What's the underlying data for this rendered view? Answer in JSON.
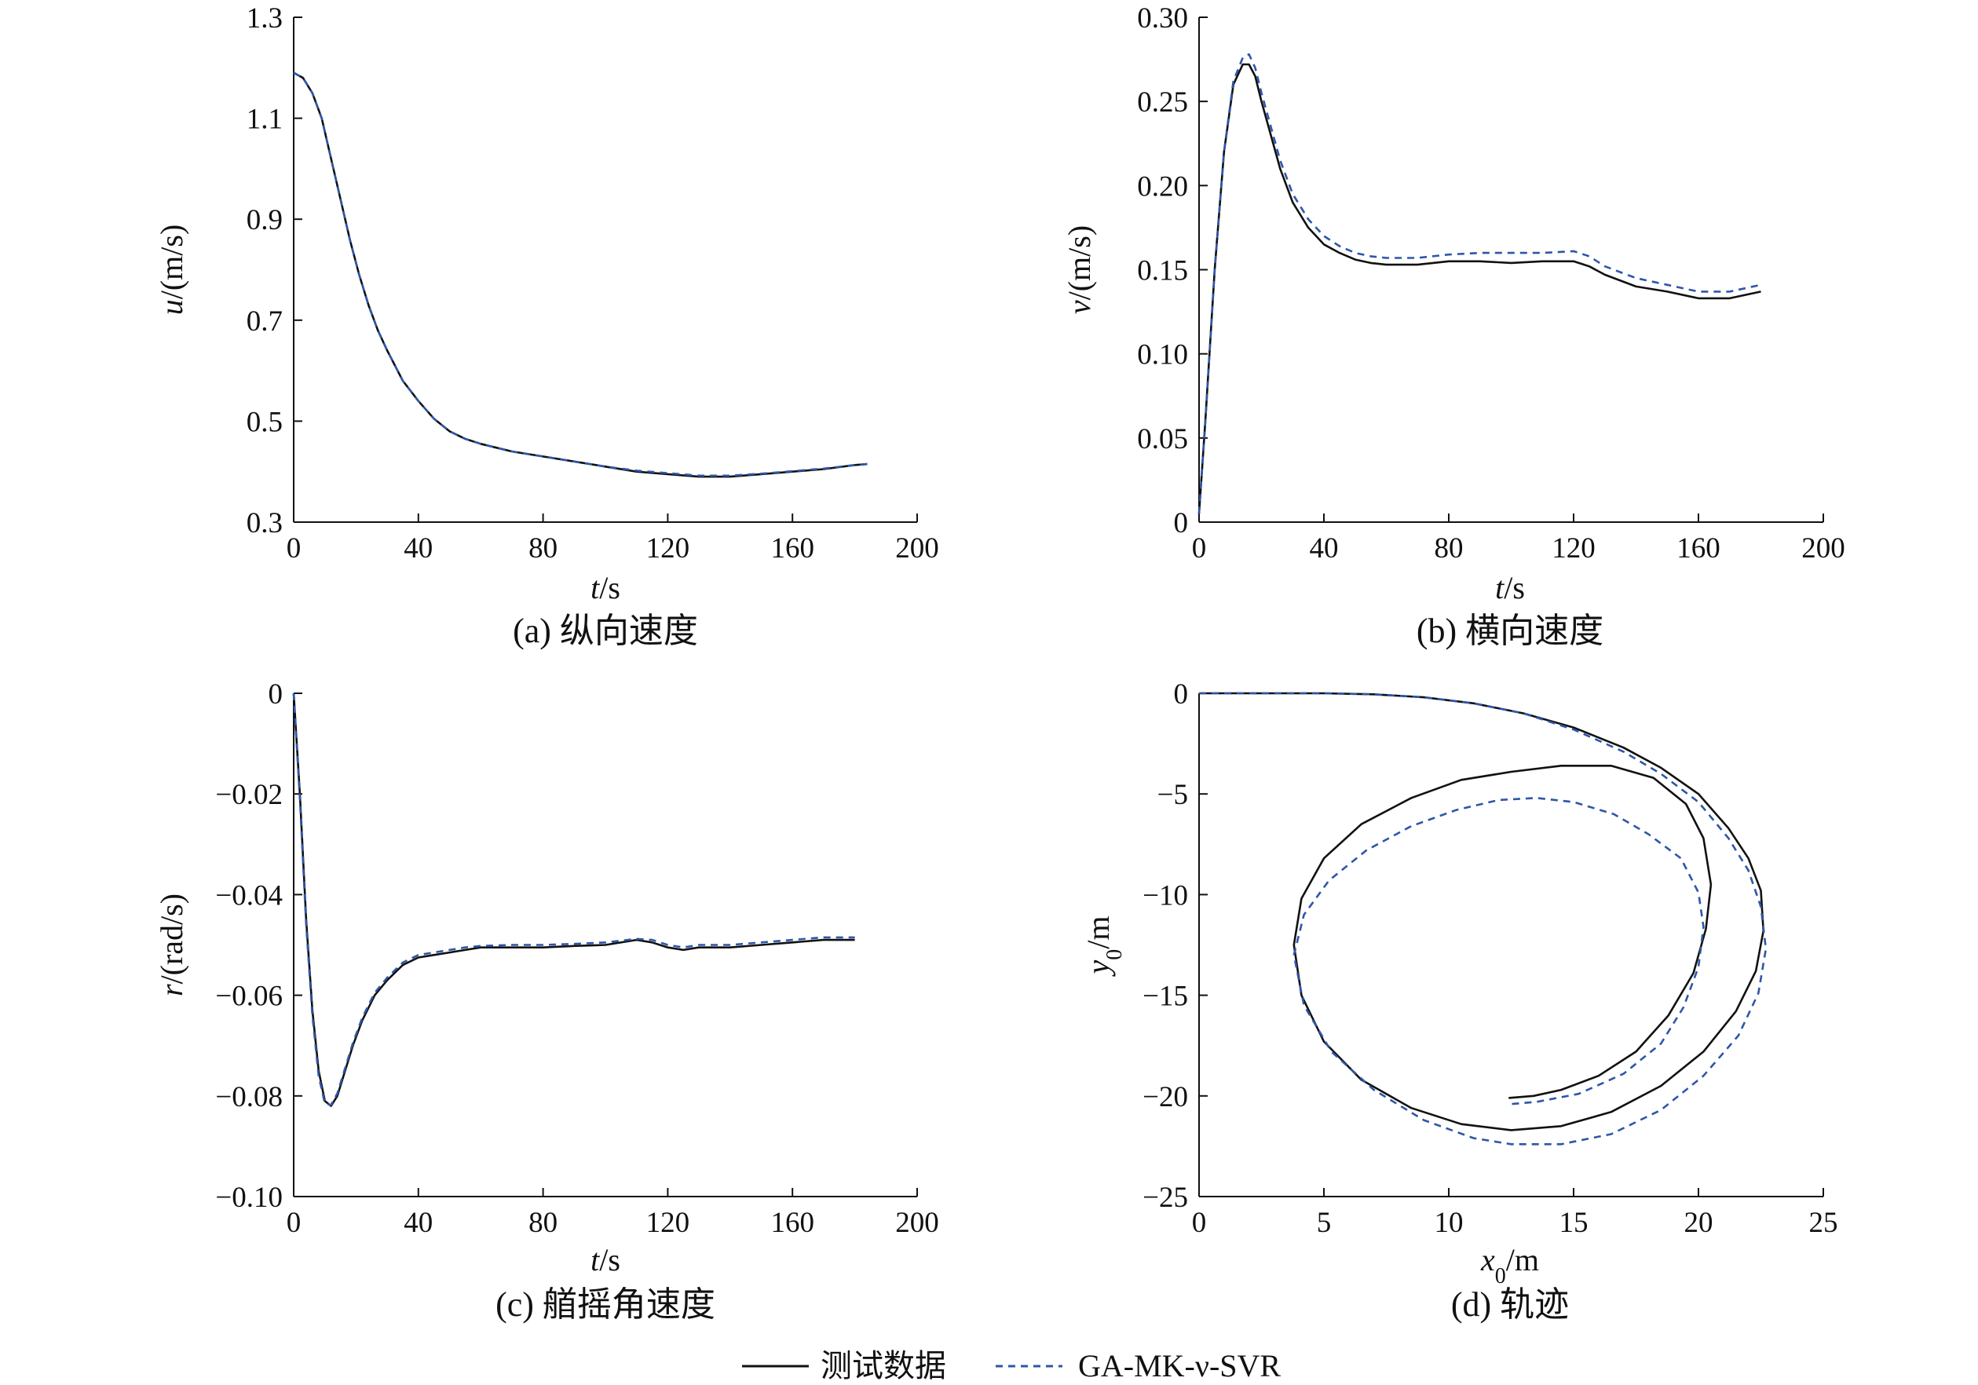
{
  "legend": {
    "test": "测试数据",
    "model": "GA-MK-ν-SVR"
  },
  "colors": {
    "test": "#111111",
    "model": "#2e56a8"
  },
  "chart_data": [
    {
      "id": "a",
      "type": "line",
      "caption": "(a) 纵向速度",
      "xlabel_var": "t",
      "xlabel_unit": "/s",
      "ylabel_var": "u",
      "ylabel_unit": "/(m/s)",
      "xlim": [
        0,
        200
      ],
      "ylim": [
        0.3,
        1.3
      ],
      "xticks": [
        0,
        40,
        80,
        120,
        160,
        200
      ],
      "yticks": [
        0.3,
        0.5,
        0.7,
        0.9,
        1.1,
        1.3
      ],
      "ytick_labels": [
        "0.3",
        "0.5",
        "0.7",
        "0.9",
        "1.1",
        "1.3"
      ],
      "series": [
        {
          "key": "test",
          "x": [
            0,
            3,
            6,
            9,
            12,
            15,
            18,
            21,
            24,
            27,
            30,
            35,
            40,
            45,
            50,
            55,
            60,
            70,
            80,
            90,
            100,
            110,
            120,
            130,
            135,
            140,
            150,
            160,
            170,
            180,
            184
          ],
          "y": [
            1.19,
            1.18,
            1.15,
            1.1,
            1.02,
            0.94,
            0.86,
            0.79,
            0.73,
            0.68,
            0.64,
            0.58,
            0.54,
            0.505,
            0.48,
            0.465,
            0.455,
            0.44,
            0.43,
            0.42,
            0.41,
            0.4,
            0.395,
            0.39,
            0.39,
            0.39,
            0.395,
            0.4,
            0.405,
            0.413,
            0.415
          ]
        },
        {
          "key": "model",
          "x": [
            0,
            3,
            6,
            9,
            12,
            15,
            18,
            21,
            24,
            27,
            30,
            35,
            40,
            45,
            50,
            55,
            60,
            70,
            80,
            90,
            100,
            110,
            120,
            130,
            135,
            140,
            150,
            160,
            170,
            180,
            184
          ],
          "y": [
            1.19,
            1.18,
            1.15,
            1.1,
            1.02,
            0.94,
            0.86,
            0.79,
            0.73,
            0.68,
            0.64,
            0.58,
            0.54,
            0.505,
            0.48,
            0.465,
            0.455,
            0.44,
            0.43,
            0.42,
            0.41,
            0.402,
            0.397,
            0.392,
            0.392,
            0.392,
            0.396,
            0.401,
            0.406,
            0.413,
            0.415
          ]
        }
      ]
    },
    {
      "id": "b",
      "type": "line",
      "caption": "(b) 横向速度",
      "xlabel_var": "t",
      "xlabel_unit": "/s",
      "ylabel_var": "v",
      "ylabel_unit": "/(m/s)",
      "xlim": [
        0,
        200
      ],
      "ylim": [
        0,
        0.3
      ],
      "xticks": [
        0,
        40,
        80,
        120,
        160,
        200
      ],
      "yticks": [
        0,
        0.05,
        0.1,
        0.15,
        0.2,
        0.25,
        0.3
      ],
      "ytick_labels": [
        "0",
        "0.05",
        "0.10",
        "0.15",
        "0.20",
        "0.25",
        "0.30"
      ],
      "series": [
        {
          "key": "test",
          "x": [
            0,
            2,
            5,
            8,
            11,
            14,
            16,
            18,
            20,
            23,
            26,
            30,
            35,
            40,
            45,
            50,
            55,
            60,
            70,
            80,
            90,
            100,
            110,
            120,
            125,
            130,
            140,
            150,
            160,
            170,
            180
          ],
          "y": [
            0.005,
            0.06,
            0.15,
            0.22,
            0.26,
            0.272,
            0.272,
            0.265,
            0.25,
            0.23,
            0.21,
            0.19,
            0.175,
            0.165,
            0.16,
            0.156,
            0.154,
            0.153,
            0.153,
            0.155,
            0.155,
            0.154,
            0.155,
            0.155,
            0.152,
            0.147,
            0.14,
            0.137,
            0.133,
            0.133,
            0.137
          ]
        },
        {
          "key": "model",
          "x": [
            0,
            2,
            5,
            8,
            11,
            14,
            16,
            18,
            20,
            23,
            26,
            30,
            35,
            40,
            45,
            50,
            55,
            60,
            70,
            80,
            90,
            100,
            110,
            120,
            125,
            130,
            140,
            150,
            160,
            170,
            180
          ],
          "y": [
            0.005,
            0.06,
            0.15,
            0.22,
            0.262,
            0.276,
            0.278,
            0.27,
            0.255,
            0.235,
            0.215,
            0.195,
            0.18,
            0.17,
            0.164,
            0.16,
            0.158,
            0.157,
            0.157,
            0.159,
            0.16,
            0.16,
            0.16,
            0.161,
            0.158,
            0.152,
            0.145,
            0.141,
            0.137,
            0.137,
            0.141
          ]
        }
      ]
    },
    {
      "id": "c",
      "type": "line",
      "caption": "(c) 艏摇角速度",
      "xlabel_var": "t",
      "xlabel_unit": "/s",
      "ylabel_var": "r",
      "ylabel_unit": "/(rad/s)",
      "xlim": [
        0,
        200
      ],
      "ylim": [
        -0.1,
        0
      ],
      "xticks": [
        0,
        40,
        80,
        120,
        160,
        200
      ],
      "yticks": [
        -0.1,
        -0.08,
        -0.06,
        -0.04,
        -0.02,
        0
      ],
      "ytick_labels": [
        "−0.10",
        "−0.08",
        "−0.06",
        "−0.04",
        "−0.02",
        "0"
      ],
      "series": [
        {
          "key": "test",
          "x": [
            0,
            2,
            4,
            6,
            8,
            10,
            12,
            14,
            16,
            19,
            22,
            26,
            30,
            35,
            40,
            45,
            50,
            55,
            60,
            70,
            80,
            90,
            100,
            110,
            115,
            120,
            125,
            130,
            140,
            150,
            160,
            170,
            180
          ],
          "y": [
            0,
            -0.02,
            -0.045,
            -0.063,
            -0.075,
            -0.081,
            -0.082,
            -0.08,
            -0.076,
            -0.07,
            -0.065,
            -0.06,
            -0.057,
            -0.054,
            -0.0525,
            -0.052,
            -0.0515,
            -0.051,
            -0.0505,
            -0.0505,
            -0.0505,
            -0.0502,
            -0.05,
            -0.049,
            -0.0495,
            -0.0505,
            -0.051,
            -0.0505,
            -0.0505,
            -0.05,
            -0.0495,
            -0.049,
            -0.049
          ]
        },
        {
          "key": "model",
          "x": [
            0,
            2,
            4,
            6,
            8,
            10,
            12,
            14,
            16,
            19,
            22,
            26,
            30,
            35,
            40,
            45,
            50,
            55,
            60,
            70,
            80,
            90,
            100,
            110,
            115,
            120,
            125,
            130,
            140,
            150,
            160,
            170,
            180
          ],
          "y": [
            0,
            -0.021,
            -0.046,
            -0.064,
            -0.076,
            -0.0815,
            -0.0818,
            -0.0795,
            -0.0755,
            -0.0695,
            -0.0645,
            -0.0595,
            -0.0565,
            -0.0535,
            -0.052,
            -0.0515,
            -0.051,
            -0.0505,
            -0.0502,
            -0.05,
            -0.05,
            -0.0498,
            -0.0495,
            -0.0488,
            -0.049,
            -0.05,
            -0.0505,
            -0.05,
            -0.05,
            -0.0495,
            -0.049,
            -0.0485,
            -0.0485
          ]
        }
      ]
    },
    {
      "id": "d",
      "type": "line",
      "caption": "(d) 轨迹",
      "xlabel_var": "x",
      "xlabel_sub": "0",
      "xlabel_unit": "/m",
      "ylabel_var": "y",
      "ylabel_sub": "0",
      "ylabel_unit": "/m",
      "xlim": [
        0,
        25
      ],
      "ylim": [
        -25,
        0
      ],
      "xticks": [
        0,
        5,
        10,
        15,
        20,
        25
      ],
      "yticks": [
        -25,
        -20,
        -15,
        -10,
        -5,
        0
      ],
      "ytick_labels": [
        "−25",
        "−20",
        "−15",
        "−10",
        "−5",
        "0"
      ],
      "series": [
        {
          "key": "test",
          "x": [
            0,
            3,
            5,
            7,
            9,
            11,
            13,
            15,
            17,
            18.5,
            20,
            21.2,
            22,
            22.5,
            22.6,
            22.3,
            21.5,
            20.2,
            18.5,
            16.5,
            14.5,
            12.5,
            10.5,
            8.5,
            6.5,
            5,
            4.1,
            3.8,
            4.1,
            5,
            6.5,
            8.5,
            10.5,
            12.5,
            14.5,
            16.5,
            18.2,
            19.5,
            20.2,
            20.5,
            20.3,
            19.8,
            18.8,
            17.5,
            16,
            14.5,
            13.4,
            12.4
          ],
          "y": [
            0,
            0,
            0,
            -0.05,
            -0.2,
            -0.5,
            -1,
            -1.7,
            -2.7,
            -3.7,
            -5,
            -6.7,
            -8.2,
            -9.8,
            -11.8,
            -13.8,
            -15.8,
            -17.8,
            -19.5,
            -20.8,
            -21.5,
            -21.7,
            -21.4,
            -20.6,
            -19.2,
            -17.3,
            -15,
            -12.5,
            -10.2,
            -8.2,
            -6.5,
            -5.2,
            -4.3,
            -3.9,
            -3.6,
            -3.6,
            -4.2,
            -5.5,
            -7.2,
            -9.5,
            -11.7,
            -13.9,
            -16,
            -17.8,
            -19,
            -19.7,
            -20,
            -20.1
          ]
        },
        {
          "key": "model",
          "x": [
            0,
            3,
            5,
            7,
            9,
            11,
            13,
            15,
            17,
            18.5,
            20,
            21.2,
            22,
            22.5,
            22.7,
            22.4,
            21.6,
            20.2,
            18.5,
            16.5,
            14.5,
            12.5,
            11,
            9,
            7,
            5.3,
            4.2,
            3.8,
            4.2,
            5.2,
            6.7,
            8.5,
            10.3,
            12,
            13.5,
            15,
            16.6,
            18,
            19.3,
            20,
            20.2,
            20,
            19.4,
            18.5,
            17,
            15.2,
            13.5,
            12.5
          ],
          "y": [
            0,
            0,
            0,
            -0.05,
            -0.2,
            -0.5,
            -1,
            -1.8,
            -2.9,
            -4,
            -5.4,
            -7.2,
            -8.8,
            -10.6,
            -12.7,
            -14.9,
            -17,
            -19,
            -20.7,
            -21.9,
            -22.4,
            -22.4,
            -22.1,
            -21.2,
            -19.7,
            -17.8,
            -15.5,
            -13,
            -11,
            -9.3,
            -7.8,
            -6.6,
            -5.8,
            -5.3,
            -5.2,
            -5.4,
            -6,
            -7,
            -8.2,
            -9.9,
            -11.6,
            -13.6,
            -15.6,
            -17.4,
            -18.9,
            -19.9,
            -20.3,
            -20.4
          ]
        }
      ]
    }
  ]
}
